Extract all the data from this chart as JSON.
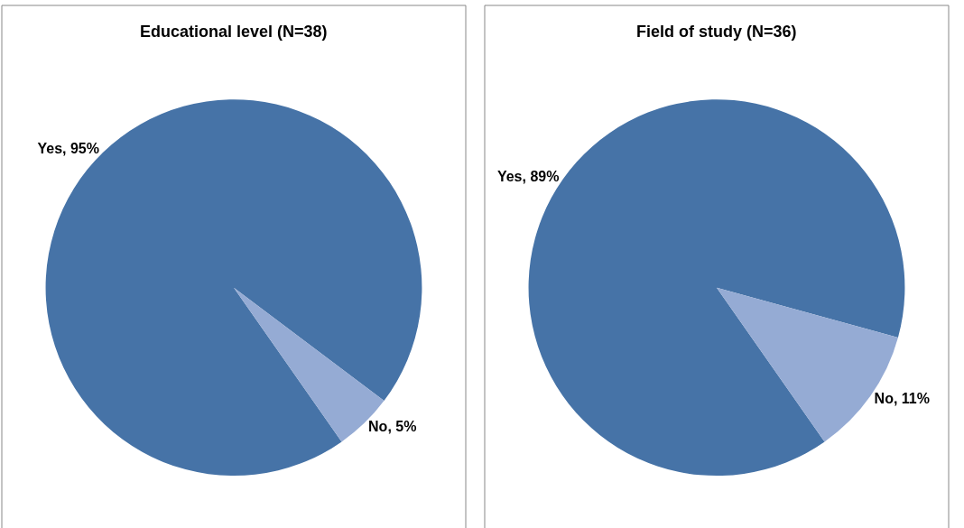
{
  "chart_data": [
    {
      "type": "pie",
      "title": "Educational level (N=38)",
      "categories": [
        "Yes",
        "No"
      ],
      "values": [
        95,
        5
      ],
      "colors": [
        "#4673a7",
        "#95abd4"
      ],
      "value_labels": [
        "95%",
        "5%"
      ]
    },
    {
      "type": "pie",
      "title": "Field of study (N=36)",
      "categories": [
        "Yes",
        "No"
      ],
      "values": [
        89,
        11
      ],
      "colors": [
        "#4673a7",
        "#95abd4"
      ],
      "value_labels": [
        "89%",
        "11%"
      ]
    }
  ]
}
